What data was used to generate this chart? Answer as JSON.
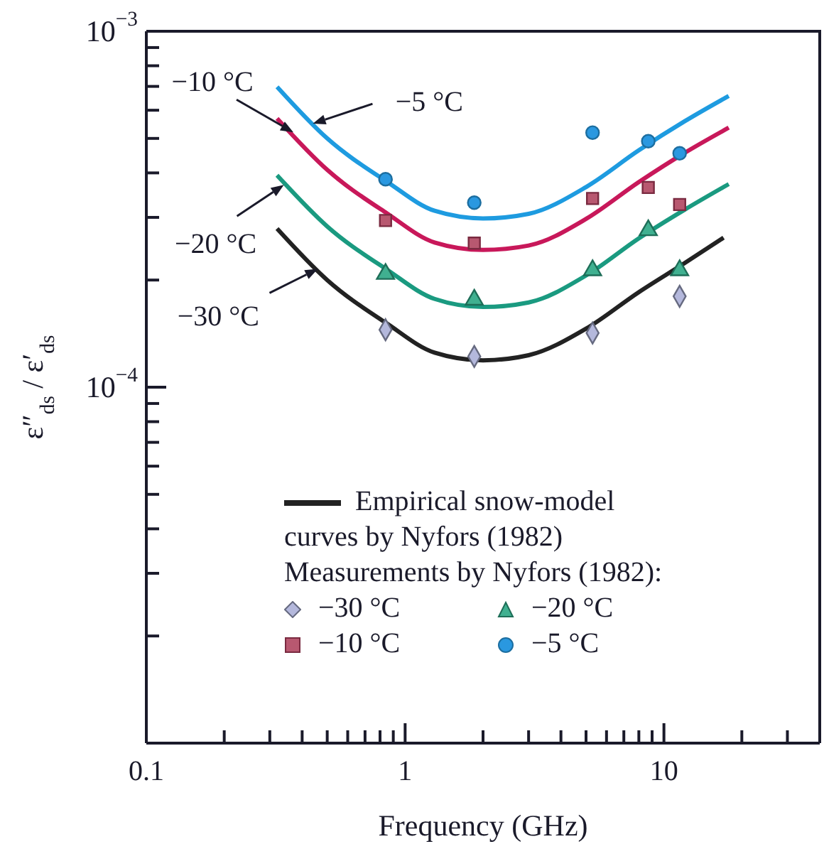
{
  "chart_data": {
    "type": "line",
    "xlabel": "Frequency (GHz)",
    "ylabel": "ε″$_{ds}$ / ε′$_{ds}$",
    "log": "xy",
    "xlim": [
      0.1,
      40
    ],
    "ylim": [
      1e-05,
      0.001
    ],
    "xticks": [
      0.1,
      {
        "value": 0.2,
        "label": null
      },
      {
        "value": 0.3,
        "label": null
      },
      {
        "value": 0.4,
        "label": null
      },
      {
        "value": 0.5,
        "label": null
      },
      {
        "value": 0.6,
        "label": null
      },
      {
        "value": 0.7,
        "label": null
      },
      {
        "value": 0.8,
        "label": null
      },
      {
        "value": 0.9,
        "label": null
      },
      1,
      {
        "value": 2,
        "label": null
      },
      {
        "value": 3,
        "label": null
      },
      {
        "value": 4,
        "label": null
      },
      {
        "value": 5,
        "label": null
      },
      {
        "value": 6,
        "label": null
      },
      {
        "value": 7,
        "label": null
      },
      {
        "value": 8,
        "label": null
      },
      {
        "value": 9,
        "label": null
      },
      10,
      {
        "value": 20,
        "label": null
      },
      {
        "value": 30,
        "label": null
      }
    ],
    "yticks": [
      {
        "value": 1e-05,
        "label": null
      },
      {
        "value": 2e-05,
        "label": null
      },
      {
        "value": 3e-05,
        "label": null
      },
      {
        "value": 4e-05,
        "label": null
      },
      {
        "value": 5e-05,
        "label": null
      },
      {
        "value": 6e-05,
        "label": null
      },
      {
        "value": 7e-05,
        "label": null
      },
      {
        "value": 8e-05,
        "label": null
      },
      {
        "value": 9e-05,
        "label": null
      },
      {
        "value": 0.0001,
        "label": "10$^{−4}$"
      },
      {
        "value": 0.0002,
        "label": null
      },
      {
        "value": 0.0003,
        "label": null
      },
      {
        "value": 0.0004,
        "label": null
      },
      {
        "value": 0.0005,
        "label": null
      },
      {
        "value": 0.0006,
        "label": null
      },
      {
        "value": 0.0007,
        "label": null
      },
      {
        "value": 0.0008,
        "label": null
      },
      {
        "value": 0.0009,
        "label": null
      },
      {
        "value": 0.001,
        "label": "10$^{−3}$"
      }
    ],
    "grid": false,
    "legend": "bottom",
    "legend_title": "Measurements by Nyfors (1982):",
    "annotations": [
      "Empirical snow-model curves by Nyfors (1982)",
      {
        "text": "−5 °C",
        "x": 0.44,
        "y": 0.00055
      },
      {
        "text": "−10 °C",
        "x": 0.37,
        "y": 0.00052
      },
      {
        "text": "−20 °C",
        "x": 0.34,
        "y": 0.00037
      },
      {
        "text": "−30 °C",
        "x": 0.46,
        "y": 0.000215
      }
    ],
    "series": [
      {
        "type": "line",
        "color": "#1e9be0",
        "x": [
          0.32,
          0.5,
          0.85,
          1.3,
          2,
          3,
          5,
          8,
          12,
          17.8
        ],
        "values": [
          0.000698,
          0.0005,
          0.000378,
          0.000313,
          0.000298,
          0.000307,
          0.000365,
          0.000463,
          0.000558,
          0.000658
        ]
      },
      {
        "type": "line",
        "color": "#c8185a",
        "x": [
          0.32,
          0.5,
          0.85,
          1.3,
          2,
          3,
          5,
          8,
          12,
          17.8
        ],
        "values": [
          0.000569,
          0.000408,
          0.000308,
          0.000255,
          0.000243,
          0.00025,
          0.000297,
          0.000377,
          0.000455,
          0.000536
        ]
      },
      {
        "type": "line",
        "color": "#1a9a80",
        "x": [
          0.32,
          0.5,
          0.85,
          1.3,
          2,
          3,
          5,
          8,
          12,
          17.8
        ],
        "values": [
          0.000394,
          0.000283,
          0.000214,
          0.000177,
          0.000168,
          0.000173,
          0.000206,
          0.000262,
          0.000315,
          0.000372
        ]
      },
      {
        "type": "line",
        "color": "#222222",
        "x": [
          0.32,
          0.5,
          0.85,
          1.3,
          2,
          3,
          5,
          8,
          12,
          17
        ],
        "values": [
          0.000279,
          0.0002,
          0.000151,
          0.000125,
          0.000119,
          0.000123,
          0.000146,
          0.000185,
          0.000223,
          0.000263
        ]
      },
      {
        "type": "scatter",
        "name": "−30 °C",
        "marker": "diamond",
        "color": "#b4b8dc",
        "x": [
          0.84,
          1.85,
          5.3,
          11.5
        ],
        "values": [
          0.000145,
          0.000122,
          0.000142,
          0.00018
        ]
      },
      {
        "type": "scatter",
        "name": "−20 °C",
        "marker": "triangle",
        "color": "#40b090",
        "x": [
          0.84,
          1.85,
          5.3,
          8.7,
          11.5
        ],
        "values": [
          0.000208,
          0.000176,
          0.000213,
          0.000276,
          0.000213
        ]
      },
      {
        "type": "scatter",
        "name": "−10 °C",
        "marker": "square",
        "color": "#b85870",
        "x": [
          0.84,
          1.85,
          5.3,
          8.7,
          11.5
        ],
        "values": [
          0.000294,
          0.000254,
          0.000339,
          0.000364,
          0.000326
        ]
      },
      {
        "type": "scatter",
        "name": "−5 °C",
        "marker": "circle",
        "color": "#2a98e0",
        "x": [
          0.84,
          1.85,
          5.3,
          8.7,
          11.5
        ],
        "values": [
          0.000384,
          0.00033,
          0.000519,
          0.000491,
          0.000454
        ]
      }
    ]
  }
}
